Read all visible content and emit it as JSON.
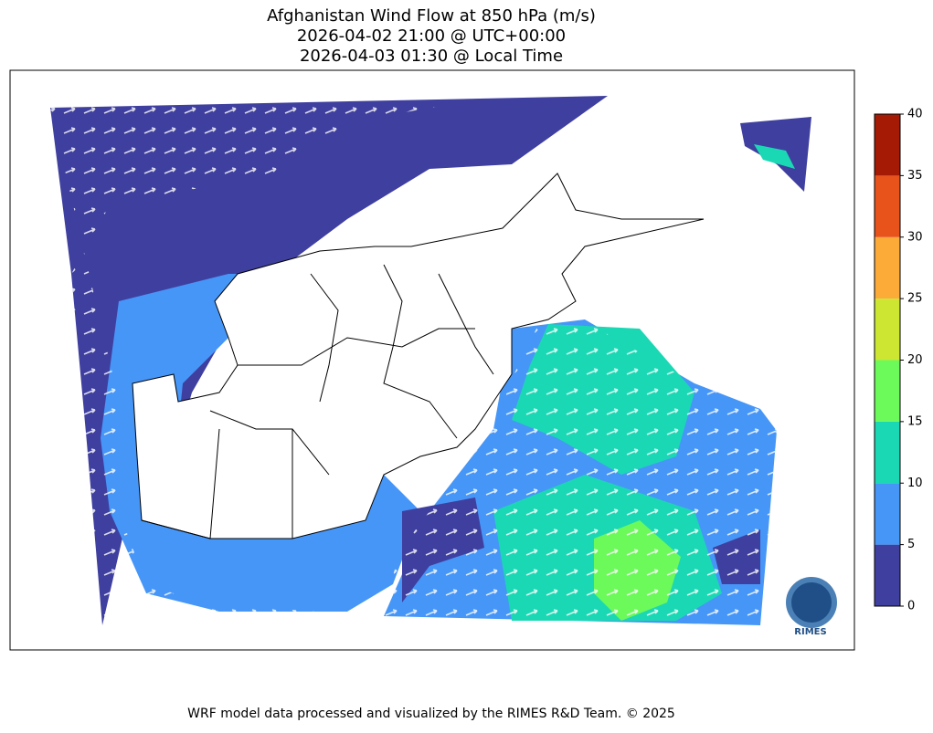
{
  "title": [
    "Afghanistan Wind Flow at 850 hPa (m/s)",
    "2026-04-02 21:00 @ UTC+00:00",
    "2026-04-03 01:30 @ Local Time"
  ],
  "colorbar": {
    "lim": [
      0,
      40
    ],
    "ticks": [
      0,
      5,
      10,
      15,
      20,
      25,
      30,
      35,
      40
    ],
    "colors": [
      "#3f3f9f",
      "#4696f8",
      "#1bd8b4",
      "#6cf95a",
      "#cde632",
      "#fdab38",
      "#e8521b",
      "#a41a05"
    ]
  },
  "logo": "RIMES",
  "footer": "WRF model data processed and visualized by the RIMES R&D Team. © 2025"
}
